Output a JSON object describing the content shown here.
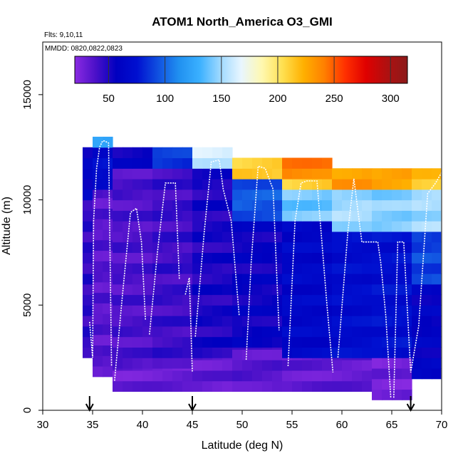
{
  "chart_data": {
    "type": "heatmap",
    "title": "ATOM1 North_America O3_GMI",
    "flights_label": "Flts: 9,10,11",
    "dates_label": "MMDD: 0820,0822,0823",
    "xlabel": "Latitude (deg N)",
    "ylabel": "Altitude (m)",
    "xlim": [
      30,
      70
    ],
    "ylim": [
      0,
      17500
    ],
    "x_ticks": [
      "30",
      "35",
      "40",
      "45",
      "50",
      "55",
      "60",
      "65",
      "70"
    ],
    "y_ticks": [
      "0",
      "5000",
      "10000",
      "15000"
    ],
    "colorbar": {
      "range": [
        20,
        315
      ],
      "tick_labels": [
        "50",
        "100",
        "150",
        "200",
        "250",
        "300"
      ],
      "tick_values": [
        50,
        100,
        150,
        200,
        250,
        300
      ],
      "colors": [
        "#8a2be2",
        "#4b10c8",
        "#0000c0",
        "#0010d0",
        "#1050e0",
        "#2090f0",
        "#3ab0ff",
        "#9fd9ff",
        "#e8f6ff",
        "#fff8b0",
        "#ffe050",
        "#ffb000",
        "#ff8000",
        "#ff3000",
        "#e00000",
        "#b01010",
        "#8b1a1a"
      ]
    },
    "arrow_latitudes": [
      34.7,
      45.0,
      66.9
    ],
    "heat_columns": [
      {
        "lat": [
          34,
          35.2
        ],
        "segments": [
          [
            2500,
            10000,
            45
          ],
          [
            10000,
            12500,
            60
          ]
        ]
      },
      {
        "lat": [
          35,
          37
        ],
        "segments": [
          [
            1600,
            10500,
            35
          ],
          [
            10500,
            12500,
            70
          ],
          [
            12500,
            13000,
            120
          ]
        ]
      },
      {
        "lat": [
          37,
          41
        ],
        "segments": [
          [
            900,
            2000,
            30
          ],
          [
            2000,
            11500,
            38
          ],
          [
            11500,
            12500,
            55
          ]
        ]
      },
      {
        "lat": [
          41,
          45
        ],
        "segments": [
          [
            900,
            2000,
            30
          ],
          [
            2000,
            11500,
            42
          ],
          [
            11500,
            12500,
            85
          ]
        ]
      },
      {
        "lat": [
          45,
          49
        ],
        "segments": [
          [
            900,
            2500,
            32
          ],
          [
            2500,
            11500,
            50
          ],
          [
            11500,
            12500,
            160
          ]
        ]
      },
      {
        "lat": [
          49,
          54
        ],
        "segments": [
          [
            900,
            3000,
            35
          ],
          [
            3000,
            9000,
            55
          ],
          [
            9000,
            11000,
            95
          ],
          [
            11000,
            12000,
            210
          ]
        ]
      },
      {
        "lat": [
          54,
          59
        ],
        "segments": [
          [
            900,
            2500,
            32
          ],
          [
            2500,
            9000,
            65
          ],
          [
            9000,
            10500,
            140
          ],
          [
            10500,
            11000,
            210
          ],
          [
            11000,
            12000,
            240
          ]
        ]
      },
      {
        "lat": [
          59,
          63
        ],
        "segments": [
          [
            900,
            2500,
            32
          ],
          [
            2500,
            8500,
            70
          ],
          [
            8500,
            10500,
            150
          ],
          [
            10500,
            11500,
            230
          ]
        ]
      },
      {
        "lat": [
          63,
          67
        ],
        "segments": [
          [
            500,
            2500,
            28
          ],
          [
            2500,
            8500,
            72
          ],
          [
            8500,
            10500,
            145
          ],
          [
            10500,
            11500,
            225
          ]
        ]
      },
      {
        "lat": [
          67,
          69.9
        ],
        "segments": [
          [
            1500,
            6000,
            60
          ],
          [
            6000,
            8500,
            90
          ],
          [
            8500,
            10500,
            150
          ],
          [
            10500,
            11500,
            215
          ]
        ]
      }
    ],
    "profiles": [
      {
        "lat": [
          34.7,
          35.0,
          35.1,
          35.4,
          35.7,
          36.0,
          36.2,
          36.6,
          36.9
        ],
        "alt": [
          4200,
          2500,
          9000,
          11500,
          12500,
          12800,
          12800,
          12700,
          2100
        ]
      },
      {
        "lat": [
          37.2,
          38.0,
          38.8,
          39.4,
          39.9,
          40.3
        ],
        "alt": [
          1400,
          5500,
          9400,
          9600,
          8000,
          4300
        ]
      },
      {
        "lat": [
          40.7,
          41.5,
          42.3,
          43.3,
          43.7
        ],
        "alt": [
          3600,
          7500,
          10800,
          10800,
          6200
        ]
      },
      {
        "lat": [
          44.3,
          44.7,
          45.0
        ],
        "alt": [
          5500,
          6300,
          1800
        ]
      },
      {
        "lat": [
          45.3,
          46.2,
          46.9,
          47.7,
          48.1,
          48.9,
          49.7
        ],
        "alt": [
          3500,
          8500,
          11800,
          11900,
          10500,
          9000,
          4500
        ]
      },
      {
        "lat": [
          50.4,
          50.9,
          51.6,
          52.3,
          53.1,
          53.7
        ],
        "alt": [
          2400,
          7000,
          11600,
          11500,
          10500,
          3800
        ]
      },
      {
        "lat": [
          54.6,
          55.3,
          55.9,
          56.5,
          57.5,
          58.5,
          59.1
        ],
        "alt": [
          2100,
          9000,
          10800,
          10900,
          10900,
          5000,
          1800
        ]
      },
      {
        "lat": [
          59.6,
          60.6,
          61.2,
          62.0,
          63.6,
          63.9,
          64.4,
          64.9
        ],
        "alt": [
          2500,
          8500,
          11000,
          8000,
          8000,
          7000,
          4500,
          600
        ]
      },
      {
        "lat": [
          65.2,
          65.6,
          66.2,
          66.9,
          67.7,
          68.6,
          69.4,
          70.0
        ],
        "alt": [
          600,
          8000,
          8000,
          1800,
          4000,
          10300,
          10800,
          11300
        ]
      }
    ]
  }
}
